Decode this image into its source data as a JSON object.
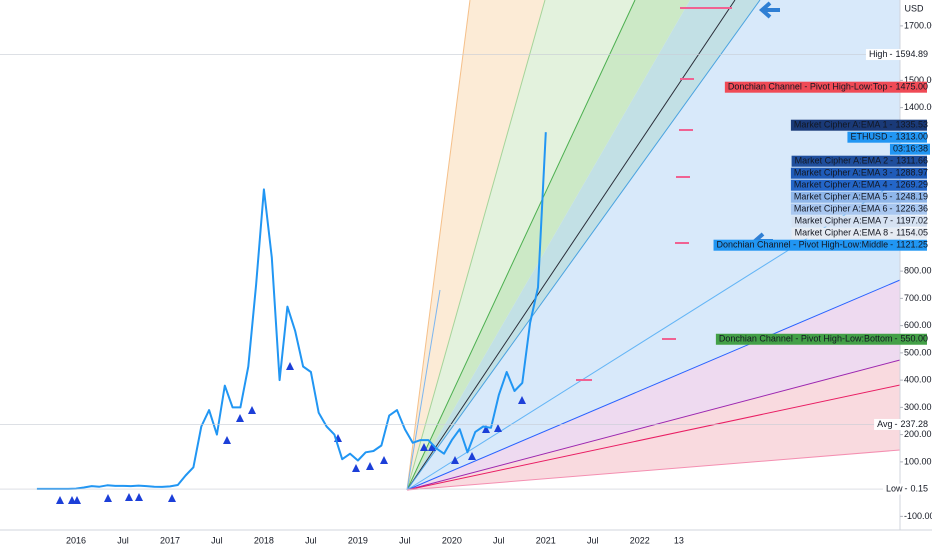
{
  "chart_data": {
    "type": "line",
    "currency": "USD",
    "color": "#2196f3",
    "categories": [
      null,
      null,
      null,
      null,
      null,
      "2016",
      null,
      null,
      null,
      null,
      null,
      "Jul",
      null,
      null,
      null,
      null,
      null,
      "2017",
      null,
      null,
      null,
      null,
      null,
      "Jul",
      null,
      null,
      null,
      null,
      null,
      "2018",
      null,
      null,
      null,
      null,
      null,
      "Jul",
      null,
      null,
      null,
      null,
      null,
      "2019",
      null,
      null,
      null,
      null,
      null,
      "Jul",
      null,
      null,
      null,
      null,
      null,
      "2020",
      null,
      null,
      null,
      null,
      null,
      "Jul",
      null,
      null,
      null,
      null,
      null,
      "2021",
      null,
      null,
      null,
      null,
      null,
      "Jul",
      null,
      null,
      null,
      null,
      null,
      "2022",
      null,
      null,
      null,
      null,
      "13"
    ],
    "values": [
      1,
      1,
      1,
      1,
      1,
      2,
      6,
      11,
      9,
      14,
      12,
      12,
      11,
      13,
      11,
      9,
      8,
      10,
      15,
      50,
      80,
      230,
      290,
      200,
      380,
      300,
      300,
      450,
      750,
      1100,
      850,
      400,
      670,
      580,
      450,
      430,
      280,
      230,
      200,
      110,
      130,
      105,
      135,
      140,
      160,
      270,
      290,
      220,
      170,
      180,
      180,
      150,
      130,
      180,
      220,
      135,
      210,
      230,
      225,
      345,
      430,
      360,
      390,
      610,
      740,
      1310,
      null,
      null,
      null,
      null,
      null,
      null,
      null,
      null,
      null,
      null,
      null,
      null,
      null,
      null,
      null,
      null,
      null
    ],
    "ylim": [
      -150,
      1795
    ],
    "yticks": [
      {
        "value": 1700,
        "label": "1700.00"
      },
      {
        "value": 1500,
        "label": "1500.00"
      },
      {
        "value": 1400,
        "label": "1400.00"
      },
      {
        "value": 800,
        "label": "800.00"
      },
      {
        "value": 700,
        "label": "700.00"
      },
      {
        "value": 600,
        "label": "600.00"
      },
      {
        "value": 500,
        "label": "500.00"
      },
      {
        "value": 400,
        "label": "400.00"
      },
      {
        "value": 300,
        "label": "300.00"
      },
      {
        "value": 200,
        "label": "200.00"
      },
      {
        "value": 100,
        "label": "100.00"
      },
      {
        "value": -100,
        "label": "-100.00"
      }
    ],
    "price_labels": [
      {
        "name": "High",
        "value": 1594.89,
        "label": "1594.89",
        "color": "#ffffff"
      },
      {
        "name": "Donchian Channel - Pivot High-Low:Top",
        "value": 1475,
        "label": "1475.00",
        "color": "#f04a55"
      },
      {
        "name": "Market Cipher A:EMA 1",
        "value": 1335.53,
        "label": "1335.53",
        "color": "#1a3a78"
      },
      {
        "name": "ETHUSD",
        "value": 1313,
        "label": "1313.00",
        "color": "#2196f3"
      },
      {
        "name": "Market Cipher A:EMA 2",
        "value": 1311.66,
        "label": "1311.66",
        "color": "#1f4e9c"
      },
      {
        "name": "Market Cipher A:EMA 3",
        "value": 1288.97,
        "label": "1288.97",
        "color": "#1f5bb8"
      },
      {
        "name": "Market Cipher A:EMA 4",
        "value": 1269.29,
        "label": "1269.29",
        "color": "#2466c8"
      },
      {
        "name": "Market Cipher A:EMA 5",
        "value": 1248.19,
        "label": "1248.19",
        "color": "#8fb6ea"
      },
      {
        "name": "Market Cipher A:EMA 6",
        "value": 1226.36,
        "label": "1226.36",
        "color": "#a9c7f0"
      },
      {
        "name": "Market Cipher A:EMA 7",
        "value": 1197.02,
        "label": "1197.02",
        "color": "#d6e2f2"
      },
      {
        "name": "Market Cipher A:EMA 8",
        "value": 1154.05,
        "label": "1154.05",
        "color": "#e6ebf2"
      },
      {
        "name": "Donchian Channel - Pivot High-Low:Middle",
        "value": 1121.25,
        "label": "1121.25",
        "color": "#2196f3"
      },
      {
        "name": "Donchian Channel - Pivot High-Low:Bottom",
        "value": 550,
        "label": "550.00",
        "color": "#43a047"
      },
      {
        "name": "Avg",
        "value": 237.28,
        "label": "237.28",
        "color": "#ffffff"
      },
      {
        "name": "Low",
        "value": 0.15,
        "label": "0.15",
        "color": "#ffffff"
      }
    ],
    "countdown": "03:16:38"
  }
}
